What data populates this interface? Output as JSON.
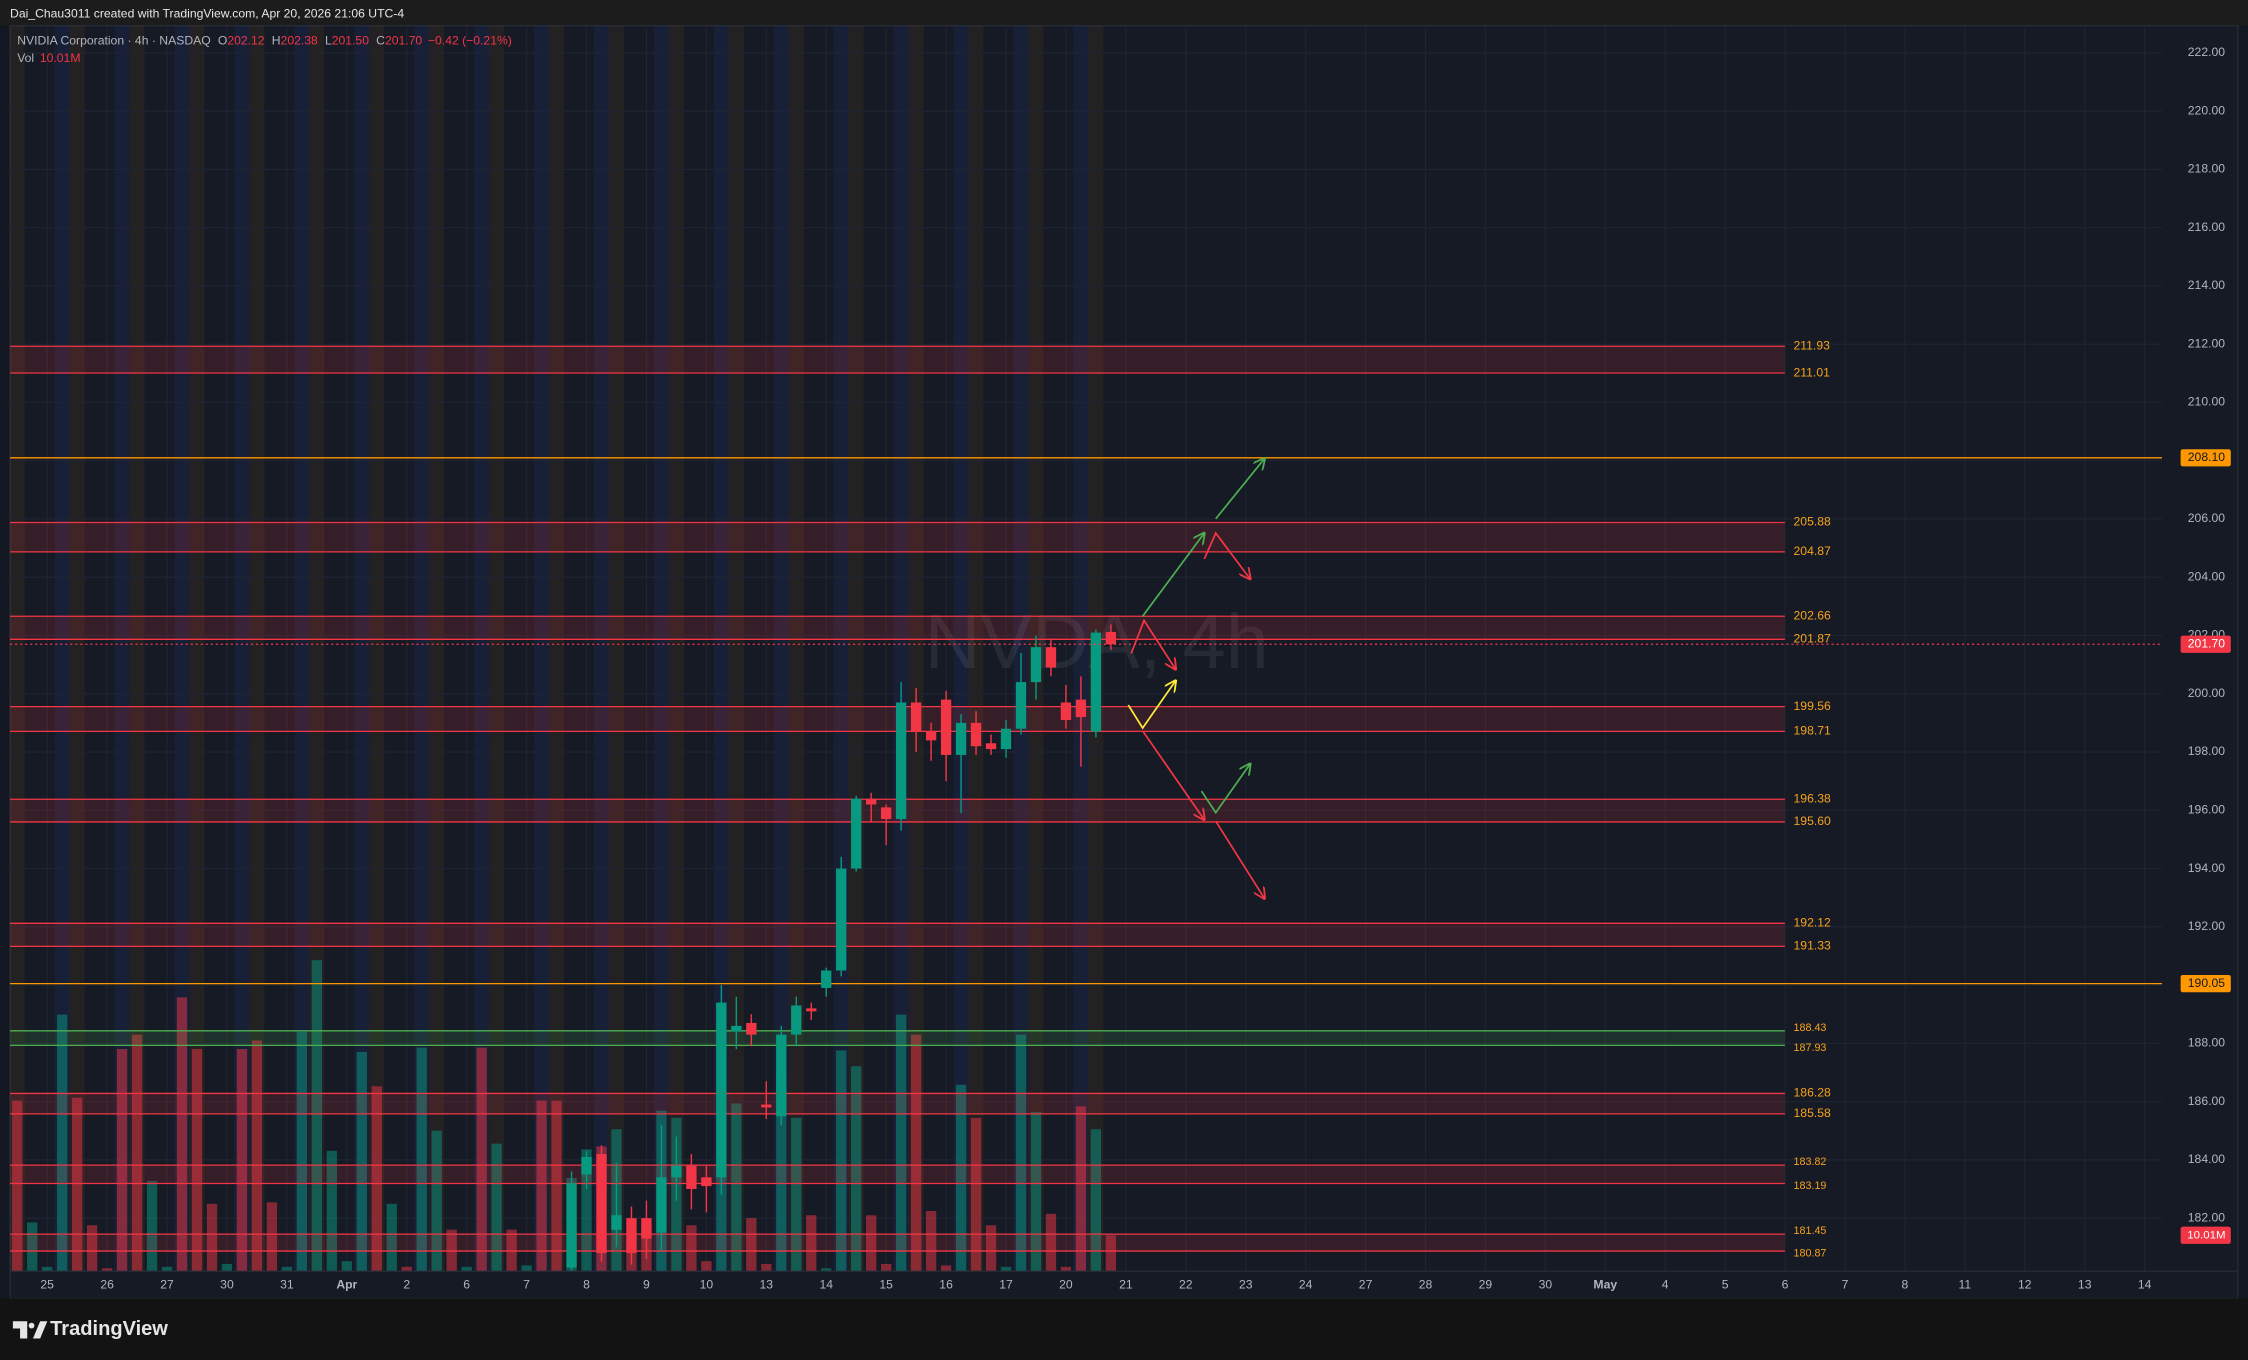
{
  "header": {
    "caption": "Dai_Chau3011 created with TradingView.com, Apr 20, 2026 21:06 UTC-4"
  },
  "footer": {
    "brand": "TradingView"
  },
  "chart_data": {
    "type": "candlestick",
    "title": "NVIDIA Corporation · 4h · NASDAQ",
    "watermark": "NVDA, 4h",
    "legend": {
      "ohlc": [
        {
          "key": "O",
          "text": "202.12"
        },
        {
          "key": "H",
          "text": "202.38"
        },
        {
          "key": "L",
          "text": "201.50"
        },
        {
          "key": "C",
          "text": "201.70"
        }
      ],
      "change": "−0.42 (−0.21%)",
      "volume_name": "Vol"
    },
    "up_color": "#089981",
    "down_color": "#f23645",
    "grid": true,
    "ylim": [
      180.18,
      222.93
    ],
    "yticks": [
      {
        "value": 182,
        "label": "182.00"
      },
      {
        "value": 184,
        "label": "184.00"
      },
      {
        "value": 186,
        "label": "186.00"
      },
      {
        "value": 188,
        "label": "188.00"
      },
      {
        "value": 190,
        "label": "190.00"
      },
      {
        "value": 192,
        "label": "192.00"
      },
      {
        "value": 194,
        "label": "194.00"
      },
      {
        "value": 196,
        "label": "196.00"
      },
      {
        "value": 198,
        "label": "198.00"
      },
      {
        "value": 200,
        "label": "200.00"
      },
      {
        "value": 202,
        "label": "202.00"
      },
      {
        "value": 204,
        "label": "204.00"
      },
      {
        "value": 206,
        "label": "206.00"
      },
      {
        "value": 208,
        "label": "208.00"
      },
      {
        "value": 210,
        "label": "210.00"
      },
      {
        "value": 212,
        "label": "212.00"
      },
      {
        "value": 214,
        "label": "214.00"
      },
      {
        "value": 216,
        "label": "216.00"
      },
      {
        "value": 218,
        "label": "218.00"
      },
      {
        "value": 220,
        "label": "220.00"
      },
      {
        "value": 222,
        "label": "222.00"
      }
    ],
    "x_labels": [
      "25",
      "26",
      "27",
      "30",
      "31",
      "Apr",
      "2",
      "6",
      "7",
      "8",
      "9",
      "10",
      "13",
      "14",
      "15",
      "16",
      "17",
      "20",
      "21",
      "22",
      "23",
      "24",
      "27",
      "28",
      "29",
      "30",
      "May",
      "4",
      "5",
      "6",
      "7",
      "8",
      "11",
      "12",
      "13",
      "14"
    ],
    "open": [
      null,
      null,
      null,
      null,
      null,
      null,
      null,
      null,
      null,
      null,
      null,
      null,
      null,
      null,
      null,
      null,
      null,
      null,
      null,
      null,
      null,
      null,
      null,
      null,
      null,
      null,
      null,
      null,
      null,
      null,
      null,
      null,
      null,
      null,
      null,
      null,
      null,
      180.3,
      183.5,
      184.2,
      181.6,
      182.0,
      182.0,
      181.5,
      183.4,
      183.8,
      183.4,
      183.4,
      188.4,
      188.7,
      185.9,
      185.5,
      188.3,
      189.2,
      189.9,
      190.5,
      194.0,
      196.4,
      196.1,
      195.7,
      199.7,
      198.7,
      199.8,
      197.9,
      199.0,
      198.3,
      198.1,
      198.8,
      200.4,
      201.6,
      199.7,
      199.8,
      198.7,
      202.12
    ],
    "high": [
      null,
      null,
      null,
      null,
      null,
      null,
      null,
      null,
      null,
      null,
      null,
      null,
      null,
      null,
      null,
      null,
      null,
      null,
      null,
      null,
      null,
      null,
      null,
      null,
      null,
      null,
      null,
      null,
      null,
      null,
      null,
      null,
      null,
      null,
      null,
      null,
      null,
      183.6,
      184.3,
      184.5,
      183.9,
      182.4,
      182.6,
      185.2,
      184.8,
      184.2,
      183.8,
      190.0,
      189.6,
      189.0,
      186.7,
      188.6,
      189.6,
      189.4,
      190.6,
      194.4,
      196.5,
      196.6,
      196.2,
      200.4,
      200.2,
      199.0,
      200.1,
      199.3,
      199.4,
      198.6,
      199.1,
      201.4,
      202.0,
      201.9,
      200.3,
      200.6,
      202.2,
      202.38
    ],
    "low": [
      null,
      null,
      null,
      null,
      null,
      null,
      null,
      null,
      null,
      null,
      null,
      null,
      null,
      null,
      null,
      null,
      null,
      null,
      null,
      null,
      null,
      null,
      null,
      null,
      null,
      null,
      null,
      null,
      null,
      null,
      null,
      null,
      null,
      null,
      null,
      null,
      null,
      180.2,
      183.0,
      180.5,
      181.0,
      180.4,
      180.6,
      180.9,
      182.6,
      182.3,
      182.2,
      182.8,
      187.8,
      187.9,
      185.4,
      185.2,
      187.9,
      188.8,
      189.6,
      190.3,
      193.9,
      195.6,
      194.8,
      195.3,
      198.0,
      197.7,
      197.0,
      195.9,
      197.9,
      197.9,
      197.8,
      198.6,
      199.8,
      200.6,
      198.8,
      197.5,
      198.5,
      201.5
    ],
    "close": [
      null,
      null,
      null,
      null,
      null,
      null,
      null,
      null,
      null,
      null,
      null,
      null,
      null,
      null,
      null,
      null,
      null,
      null,
      null,
      null,
      null,
      null,
      null,
      null,
      null,
      null,
      null,
      null,
      null,
      null,
      null,
      null,
      null,
      null,
      null,
      null,
      null,
      183.2,
      184.1,
      180.8,
      182.1,
      180.8,
      181.3,
      183.4,
      183.8,
      183.0,
      183.1,
      189.4,
      188.6,
      188.3,
      185.8,
      188.3,
      189.3,
      189.1,
      190.5,
      194.0,
      196.4,
      196.2,
      195.7,
      199.7,
      198.7,
      198.4,
      197.9,
      199.0,
      198.2,
      198.1,
      198.8,
      200.4,
      201.6,
      200.9,
      199.1,
      199.2,
      202.1,
      201.7
    ],
    "volume": {
      "ylim": [
        0,
        90
      ],
      "values": [
        47.6,
        13.6,
        1.2,
        71.6,
        48.4,
        12.8,
        0.8,
        62,
        66,
        25.2,
        1.2,
        76.4,
        62,
        18.8,
        2,
        62,
        64.4,
        19.2,
        1.2,
        66.8,
        86.8,
        33.6,
        2.8,
        61.2,
        51.6,
        18.8,
        1.2,
        62.4,
        39.2,
        11.6,
        1.2,
        62.4,
        35.6,
        11.6,
        1.6,
        47.6,
        47.6,
        26,
        34,
        34.8,
        39.6,
        10.8,
        13.6,
        44.8,
        42.8,
        12.8,
        2.8,
        74.8,
        46.8,
        14.8,
        2,
        54.8,
        42.8,
        15.6,
        0.8,
        61.6,
        57.2,
        15.6,
        2,
        71.6,
        66,
        16.8,
        1.6,
        52,
        42.8,
        12.8,
        1.2,
        66,
        44.4,
        16,
        1.2,
        46,
        39.6,
        10.01
      ],
      "value_labels": [
        null,
        null,
        null,
        null,
        null,
        null,
        null,
        null,
        null,
        null,
        null,
        null,
        null,
        null,
        null,
        null,
        null,
        null,
        null,
        null,
        null,
        null,
        null,
        null,
        null,
        null,
        null,
        null,
        null,
        null,
        null,
        null,
        null,
        null,
        null,
        null,
        null,
        null,
        null,
        null,
        null,
        null,
        null,
        null,
        null,
        null,
        null,
        null,
        null,
        null,
        null,
        null,
        null,
        null,
        null,
        null,
        null,
        null,
        null,
        null,
        null,
        null,
        null,
        null,
        null,
        null,
        null,
        null,
        null,
        null,
        null,
        null,
        null,
        "10.01M"
      ],
      "up": [
        false,
        true,
        true,
        true,
        false,
        false,
        false,
        false,
        false,
        true,
        true,
        false,
        false,
        false,
        true,
        false,
        false,
        false,
        true,
        true,
        true,
        true,
        true,
        true,
        false,
        true,
        false,
        true,
        true,
        false,
        true,
        false,
        true,
        false,
        true,
        false,
        false,
        true,
        true,
        false,
        true,
        false,
        false,
        true,
        true,
        false,
        false,
        true,
        true,
        false,
        false,
        true,
        true,
        false,
        true,
        true,
        true,
        false,
        false,
        true,
        false,
        false,
        false,
        true,
        false,
        false,
        true,
        true,
        true,
        false,
        false,
        false,
        true,
        false
      ]
    },
    "zones": [
      {
        "color": "#f23645",
        "bounds": [
          211.93,
          211.01
        ]
      },
      {
        "color": "#f23645",
        "bounds": [
          205.88,
          204.87
        ]
      },
      {
        "color": "#f23645",
        "bounds": [
          202.66,
          201.87
        ]
      },
      {
        "color": "#f23645",
        "bounds": [
          199.56,
          198.71
        ]
      },
      {
        "color": "#f23645",
        "bounds": [
          196.38,
          {
            "value": 195.6,
            "label": "195.60"
          }
        ]
      },
      {
        "color": "#f23645",
        "bounds": [
          192.12,
          191.33
        ]
      },
      {
        "color": "#4caf50",
        "bounds": [
          188.43,
          187.93
        ]
      },
      {
        "color": "#f23645",
        "bounds": [
          186.28,
          185.58
        ]
      },
      {
        "color": "#f23645",
        "bounds": [
          183.82,
          183.19
        ]
      },
      {
        "color": "#f23645",
        "bounds": [
          181.45,
          180.87
        ]
      }
    ],
    "zone_label_color": "#f7a21b",
    "lines": [
      {
        "color": "#ff9800",
        "level": {
          "value": 208.1,
          "label": "208.10"
        }
      },
      {
        "color": "#ff9800",
        "level": 190.05
      }
    ],
    "last_price": {
      "value": 201.7,
      "label": "201.70"
    }
  }
}
